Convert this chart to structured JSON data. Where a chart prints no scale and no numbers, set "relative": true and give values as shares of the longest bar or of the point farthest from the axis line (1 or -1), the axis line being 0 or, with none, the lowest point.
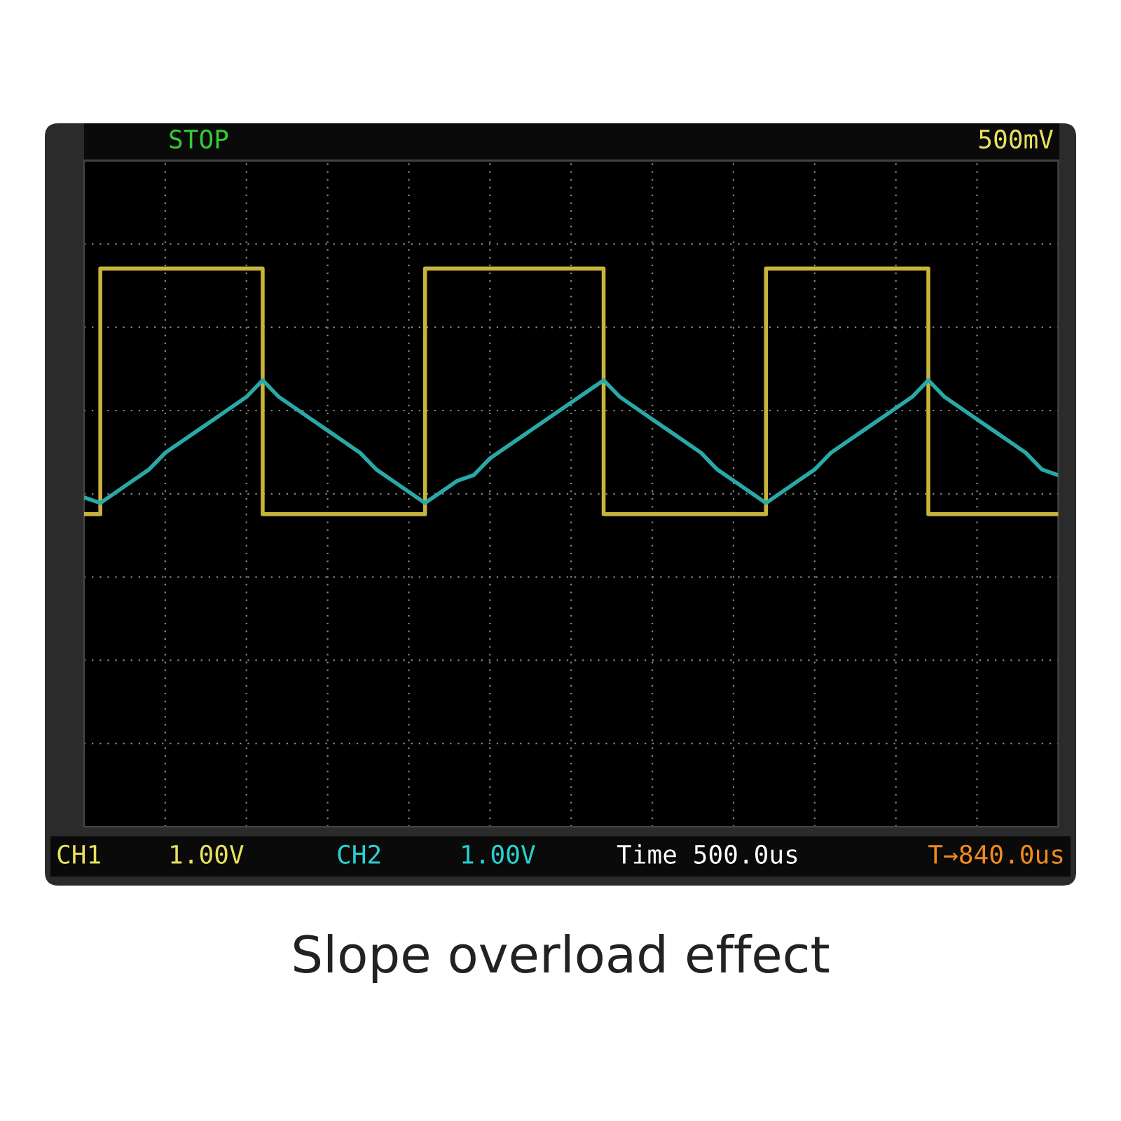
{
  "chart_data": {
    "type": "line",
    "title": "Slope overload effect",
    "relative": true,
    "grid": true,
    "marker": "none",
    "line_style": "solid",
    "categories": [
      null,
      null,
      null,
      null,
      null,
      null,
      null,
      null,
      null,
      null,
      null,
      null,
      null,
      null,
      null,
      null,
      null,
      null,
      null,
      null,
      null,
      null,
      null,
      null,
      null,
      null,
      null,
      null,
      null,
      null,
      null,
      null,
      null,
      null,
      null,
      null,
      null,
      null,
      null,
      null,
      null,
      null,
      null,
      null,
      null,
      null,
      null,
      null,
      null,
      null,
      null,
      null,
      null,
      null,
      null,
      null,
      null,
      null,
      null,
      null,
      null
    ],
    "series": [
      {
        "type": "step",
        "color": "#c8b43c",
        "values": [
          0.56,
          1,
          1,
          1,
          1,
          1,
          1,
          1,
          1,
          1,
          1,
          0.56,
          0.56,
          0.56,
          0.56,
          0.56,
          0.56,
          0.56,
          0.56,
          0.56,
          0.56,
          1,
          1,
          1,
          1,
          1,
          1,
          1,
          1,
          1,
          1,
          1,
          0.56,
          0.56,
          0.56,
          0.56,
          0.56,
          0.56,
          0.56,
          0.56,
          0.56,
          0.56,
          1,
          1,
          1,
          1,
          1,
          1,
          1,
          1,
          1,
          1,
          0.56,
          0.56,
          0.56,
          0.56,
          0.56,
          0.56,
          0.56,
          0.56,
          0.56
        ]
      },
      {
        "color": "#2aa8a8",
        "values": [
          0.59,
          0.58,
          0.6,
          0.62,
          0.64,
          0.67,
          0.69,
          0.71,
          0.73,
          0.75,
          0.77,
          0.8,
          0.77,
          0.75,
          0.73,
          0.71,
          0.69,
          0.67,
          0.64,
          0.62,
          0.6,
          0.58,
          0.6,
          0.62,
          0.63,
          0.66,
          0.68,
          0.7,
          0.72,
          0.74,
          0.76,
          0.78,
          0.8,
          0.77,
          0.75,
          0.73,
          0.71,
          0.69,
          0.67,
          0.64,
          0.62,
          0.6,
          0.58,
          0.6,
          0.62,
          0.64,
          0.67,
          0.69,
          0.71,
          0.73,
          0.75,
          0.77,
          0.8,
          0.77,
          0.75,
          0.73,
          0.71,
          0.69,
          0.67,
          0.64,
          0.63
        ]
      }
    ],
    "annotations": [
      "STOP",
      "500mV",
      "CH1",
      "1.00V",
      "CH2",
      "1.00V",
      "Time 500.0us",
      "T→840.0us"
    ]
  }
}
